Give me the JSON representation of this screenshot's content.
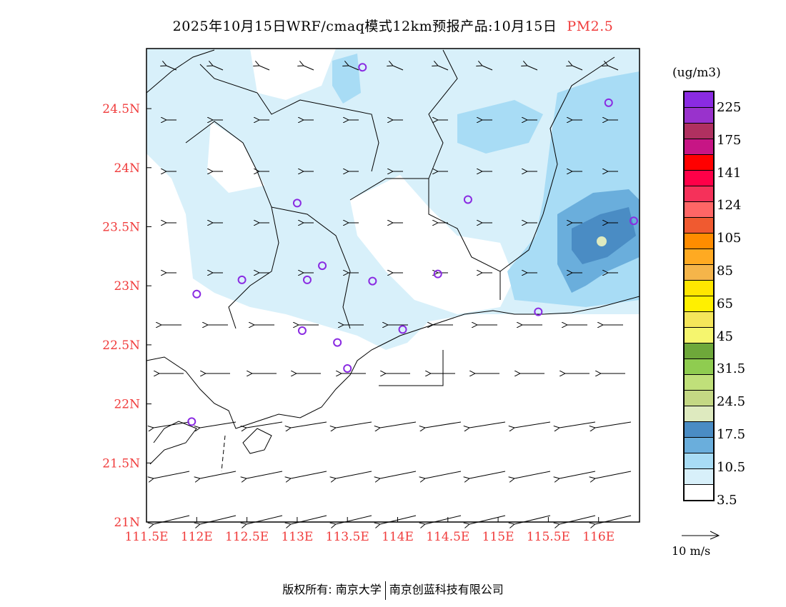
{
  "title": {
    "main": "2025年10月15日WRF/cmaq模式12km预报产品:10月15日",
    "pollutant": "PM2.5"
  },
  "axes": {
    "lon_ticks": [
      "111.5E",
      "112E",
      "112.5E",
      "113E",
      "113.5E",
      "114E",
      "114.5E",
      "115E",
      "115.5E",
      "116E"
    ],
    "lon_values": [
      111.5,
      112,
      112.5,
      113,
      113.5,
      114,
      114.5,
      115,
      115.5,
      116
    ],
    "lat_ticks": [
      "21N",
      "21.5N",
      "22N",
      "22.5N",
      "23N",
      "23.5N",
      "24N",
      "24.5N"
    ],
    "lat_values": [
      21,
      21.5,
      22,
      22.5,
      23,
      23.5,
      24,
      24.5
    ],
    "lon_range": [
      111.5,
      116.4
    ],
    "lat_range": [
      21,
      25
    ]
  },
  "legend": {
    "unit": "(ug/m3)",
    "colors": [
      "#8a2be2",
      "#9932cc",
      "#b03060",
      "#c71585",
      "#ff0000",
      "#ff0048",
      "#f5315a",
      "#ff6666",
      "#f05a30",
      "#ff8c00",
      "#ffaa22",
      "#f5b54a",
      "#ffe600",
      "#fff000",
      "#f5e65a",
      "#f5f56e",
      "#6ea83a",
      "#8fcc50",
      "#c0e07a",
      "#c4d884",
      "#deeabf",
      "#4a8cc4",
      "#6aaedc",
      "#a8dcf5",
      "#d8f0fa",
      "#ffffff"
    ],
    "labels": [
      "225",
      "175",
      "141",
      "124",
      "105",
      "85",
      "65",
      "45",
      "31.5",
      "24.5",
      "17.5",
      "10.5",
      "3.5"
    ]
  },
  "wind_reference": "10 m/s",
  "stations": [
    [
      113.65,
      24.85
    ],
    [
      116.1,
      24.55
    ],
    [
      113.0,
      23.7
    ],
    [
      114.7,
      23.73
    ],
    [
      116.35,
      23.55
    ],
    [
      113.25,
      23.17
    ],
    [
      112.45,
      23.05
    ],
    [
      113.1,
      23.05
    ],
    [
      113.75,
      23.04
    ],
    [
      114.4,
      23.1
    ],
    [
      112.0,
      22.93
    ],
    [
      115.4,
      22.78
    ],
    [
      113.05,
      22.62
    ],
    [
      114.05,
      22.63
    ],
    [
      113.4,
      22.52
    ],
    [
      113.5,
      22.3
    ],
    [
      111.95,
      21.85
    ]
  ],
  "footer": {
    "left": "版权所有: 南京大学",
    "right": "南京创蓝科技有限公司"
  }
}
